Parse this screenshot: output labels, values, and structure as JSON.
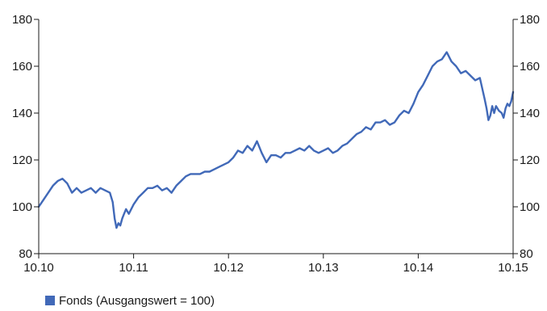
{
  "chart_data": {
    "type": "line",
    "x_tick_labels": [
      "10.10",
      "10.11",
      "10.12",
      "10.13",
      "10.14",
      "10.15"
    ],
    "y_ticks": [
      80,
      100,
      120,
      140,
      160,
      180
    ],
    "ylim": [
      80,
      180
    ],
    "y_axis_sides": [
      "left",
      "right"
    ],
    "grid": false,
    "legend_placement": "bottom-left",
    "series": [
      {
        "name": "Fonds (Ausgangswert = 100)",
        "color": "#4169b8",
        "x": [
          0,
          0.05,
          0.1,
          0.15,
          0.2,
          0.25,
          0.3,
          0.35,
          0.4,
          0.45,
          0.5,
          0.55,
          0.6,
          0.65,
          0.7,
          0.75,
          0.78,
          0.8,
          0.82,
          0.84,
          0.86,
          0.88,
          0.9,
          0.92,
          0.95,
          1.0,
          1.05,
          1.1,
          1.15,
          1.2,
          1.25,
          1.3,
          1.35,
          1.4,
          1.45,
          1.5,
          1.55,
          1.6,
          1.65,
          1.7,
          1.75,
          1.8,
          1.85,
          1.9,
          1.95,
          2.0,
          2.05,
          2.1,
          2.15,
          2.2,
          2.25,
          2.3,
          2.35,
          2.4,
          2.45,
          2.5,
          2.55,
          2.6,
          2.65,
          2.7,
          2.75,
          2.8,
          2.85,
          2.9,
          2.95,
          3.0,
          3.05,
          3.1,
          3.15,
          3.2,
          3.25,
          3.3,
          3.35,
          3.4,
          3.45,
          3.5,
          3.55,
          3.6,
          3.65,
          3.7,
          3.75,
          3.8,
          3.85,
          3.9,
          3.95,
          4.0,
          4.05,
          4.1,
          4.15,
          4.2,
          4.25,
          4.3,
          4.35,
          4.4,
          4.45,
          4.5,
          4.55,
          4.6,
          4.65,
          4.7,
          4.72,
          4.74,
          4.76,
          4.78,
          4.8,
          4.82,
          4.85,
          4.88,
          4.9,
          4.92,
          4.94,
          4.96,
          4.98,
          5.0
        ],
        "values": [
          100,
          103,
          106,
          109,
          111,
          112,
          110,
          106,
          108,
          106,
          107,
          108,
          106,
          108,
          107,
          106,
          102,
          95,
          91,
          93,
          92,
          95,
          97,
          99,
          97,
          101,
          104,
          106,
          108,
          108,
          109,
          107,
          108,
          106,
          109,
          111,
          113,
          114,
          114,
          114,
          115,
          115,
          116,
          117,
          118,
          119,
          121,
          124,
          123,
          126,
          124,
          128,
          123,
          119,
          122,
          122,
          121,
          123,
          123,
          124,
          125,
          124,
          126,
          124,
          123,
          124,
          125,
          123,
          124,
          126,
          127,
          129,
          131,
          132,
          134,
          133,
          136,
          136,
          137,
          135,
          136,
          139,
          141,
          140,
          144,
          149,
          152,
          156,
          160,
          162,
          163,
          166,
          162,
          160,
          157,
          158,
          156,
          154,
          155,
          146,
          142,
          137,
          139,
          143,
          140,
          143,
          141,
          140,
          138,
          142,
          144,
          143,
          145,
          149
        ]
      }
    ]
  }
}
